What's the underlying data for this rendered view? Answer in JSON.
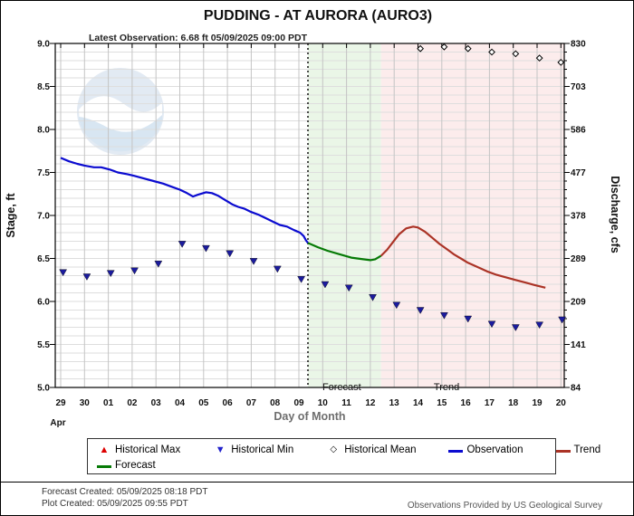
{
  "header": {
    "title": "PUDDING - AT AURORA  (AURO3)",
    "latest_observation": "Latest Observation: 6.68 ft 05/09/2025 09:00 PDT"
  },
  "chart_data": {
    "type": "line",
    "title": "PUDDING - AT AURORA  (AURO3)",
    "xlabel": "Day of Month",
    "x_month_label": "Apr",
    "x_tick_labels": [
      "29",
      "30",
      "01",
      "02",
      "03",
      "04",
      "05",
      "06",
      "07",
      "08",
      "09",
      "10",
      "11",
      "12",
      "13",
      "14",
      "15",
      "16",
      "17",
      "18",
      "19",
      "20"
    ],
    "left_axis": {
      "label": "Stage, ft",
      "range": [
        5.0,
        9.0
      ],
      "tick_values": [
        9.0,
        8.5,
        8.0,
        7.5,
        7.0,
        6.5,
        6.0,
        5.5,
        5.0
      ],
      "tick_labels": [
        "9.0",
        "8.5",
        "8.0",
        "7.5",
        "7.0",
        "6.5",
        "6.0",
        "5.5",
        "5.0"
      ]
    },
    "right_axis": {
      "label": "Discharge, cfs",
      "tick_labels": [
        "830",
        "703",
        "586",
        "477",
        "378",
        "289",
        "209",
        "141",
        "84"
      ]
    },
    "grid": true,
    "now_line_index": 10.38,
    "regions": [
      {
        "name": "forecast",
        "label": "Forecast",
        "start_index": 10.38,
        "end_index": 13.45,
        "label_index": 11.8,
        "bg": "#eaf6e7"
      },
      {
        "name": "trend",
        "label": "Trend",
        "start_index": 13.45,
        "end_index": 21.15,
        "label_index": 16.2,
        "bg": "#fcecec"
      }
    ],
    "series": [
      {
        "name": "Observation",
        "type": "line",
        "color": "#0b0bd0",
        "points": [
          [
            0.0,
            7.67
          ],
          [
            0.35,
            7.63
          ],
          [
            0.7,
            7.6
          ],
          [
            1.0,
            7.58
          ],
          [
            1.4,
            7.56
          ],
          [
            1.7,
            7.56
          ],
          [
            2.1,
            7.53
          ],
          [
            2.4,
            7.5
          ],
          [
            2.8,
            7.48
          ],
          [
            3.1,
            7.46
          ],
          [
            3.5,
            7.43
          ],
          [
            3.9,
            7.4
          ],
          [
            4.3,
            7.37
          ],
          [
            4.7,
            7.33
          ],
          [
            5.0,
            7.3
          ],
          [
            5.3,
            7.26
          ],
          [
            5.55,
            7.22
          ],
          [
            5.75,
            7.24
          ],
          [
            6.1,
            7.27
          ],
          [
            6.35,
            7.26
          ],
          [
            6.6,
            7.23
          ],
          [
            6.9,
            7.18
          ],
          [
            7.2,
            7.13
          ],
          [
            7.45,
            7.1
          ],
          [
            7.7,
            7.08
          ],
          [
            8.0,
            7.04
          ],
          [
            8.3,
            7.01
          ],
          [
            8.6,
            6.97
          ],
          [
            8.9,
            6.93
          ],
          [
            9.2,
            6.89
          ],
          [
            9.5,
            6.87
          ],
          [
            9.8,
            6.83
          ],
          [
            10.05,
            6.8
          ],
          [
            10.2,
            6.76
          ],
          [
            10.3,
            6.71
          ],
          [
            10.38,
            6.68
          ]
        ]
      },
      {
        "name": "Forecast",
        "type": "line",
        "color": "#067a06",
        "points": [
          [
            10.38,
            6.68
          ],
          [
            10.8,
            6.63
          ],
          [
            11.2,
            6.59
          ],
          [
            11.7,
            6.55
          ],
          [
            12.2,
            6.51
          ],
          [
            12.7,
            6.49
          ],
          [
            13.0,
            6.48
          ],
          [
            13.2,
            6.49
          ],
          [
            13.45,
            6.53
          ]
        ]
      },
      {
        "name": "Trend",
        "type": "line",
        "color": "#ab3326",
        "points": [
          [
            13.45,
            6.53
          ],
          [
            13.7,
            6.6
          ],
          [
            13.95,
            6.69
          ],
          [
            14.2,
            6.78
          ],
          [
            14.5,
            6.85
          ],
          [
            14.8,
            6.87
          ],
          [
            15.0,
            6.86
          ],
          [
            15.3,
            6.81
          ],
          [
            15.6,
            6.74
          ],
          [
            15.9,
            6.67
          ],
          [
            16.2,
            6.61
          ],
          [
            16.5,
            6.55
          ],
          [
            16.8,
            6.5
          ],
          [
            17.1,
            6.45
          ],
          [
            17.5,
            6.4
          ],
          [
            17.9,
            6.35
          ],
          [
            18.3,
            6.31
          ],
          [
            18.7,
            6.28
          ],
          [
            19.1,
            6.25
          ],
          [
            19.5,
            6.22
          ],
          [
            19.9,
            6.19
          ],
          [
            20.35,
            6.16
          ]
        ]
      },
      {
        "name": "Historical Min",
        "type": "scatter",
        "marker": "triangle-down",
        "color": "#1b1b9e",
        "points": [
          [
            0.1,
            6.34
          ],
          [
            1.1,
            6.29
          ],
          [
            2.1,
            6.33
          ],
          [
            3.1,
            6.36
          ],
          [
            4.1,
            6.44
          ],
          [
            5.1,
            6.67
          ],
          [
            6.1,
            6.62
          ],
          [
            7.1,
            6.56
          ],
          [
            8.1,
            6.47
          ],
          [
            9.1,
            6.38
          ],
          [
            10.1,
            6.26
          ],
          [
            11.1,
            6.2
          ],
          [
            12.1,
            6.16
          ],
          [
            13.1,
            6.05
          ],
          [
            14.1,
            5.96
          ],
          [
            15.1,
            5.9
          ],
          [
            16.1,
            5.84
          ],
          [
            17.1,
            5.8
          ],
          [
            18.1,
            5.74
          ],
          [
            19.1,
            5.7
          ],
          [
            20.1,
            5.73
          ],
          [
            21.05,
            5.79
          ]
        ]
      },
      {
        "name": "Historical Mean",
        "type": "scatter",
        "marker": "diamond-open",
        "color": "#000000",
        "points": [
          [
            15.1,
            8.94
          ],
          [
            16.1,
            8.96
          ],
          [
            17.1,
            8.94
          ],
          [
            18.1,
            8.9
          ],
          [
            19.1,
            8.88
          ],
          [
            20.1,
            8.83
          ],
          [
            21.0,
            8.78
          ]
        ]
      }
    ]
  },
  "legend": {
    "items": [
      {
        "label": "Historical Max",
        "marker": "triangle-up",
        "color": "#dd0000",
        "row": 1
      },
      {
        "label": "Historical Min",
        "marker": "triangle-down",
        "color": "#2222cc",
        "row": 1
      },
      {
        "label": "Historical Mean",
        "marker": "diamond-open",
        "color": "#000000",
        "row": 1
      },
      {
        "label": "Observation",
        "marker": "line",
        "color": "#0b0bd0",
        "row": 1
      },
      {
        "label": "Trend",
        "marker": "line",
        "color": "#ab3326",
        "row": 1
      },
      {
        "label": "Forecast",
        "marker": "line",
        "color": "#067a06",
        "row": 2
      }
    ]
  },
  "footer": {
    "forecast_created": "Forecast Created: 05/09/2025 08:18 PDT",
    "plot_created": "Plot Created: 05/09/2025 09:55 PDT",
    "provider_note": "Observations Provided by US Geological Survey"
  }
}
